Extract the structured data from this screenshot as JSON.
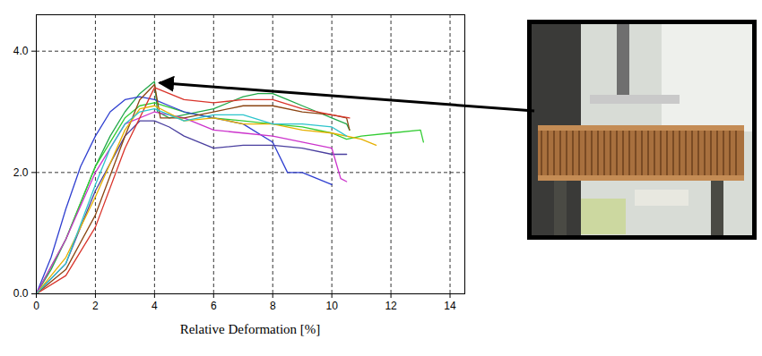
{
  "chart_data": {
    "type": "line",
    "xlabel": "Relative Deformation [%]",
    "xlim": [
      0,
      14.5
    ],
    "ylim": [
      0,
      4.6
    ],
    "xticks": [
      0,
      2,
      4,
      6,
      8,
      10,
      12,
      14
    ],
    "yticks": [
      0,
      2,
      4
    ],
    "grid": true,
    "series": [
      {
        "color": "#22a84a",
        "x": [
          0,
          0.5,
          1,
          1.5,
          2,
          2.5,
          3,
          3.5,
          4,
          4.1,
          4.5,
          5,
          6,
          7,
          7.5,
          8,
          8.5,
          9,
          9.5,
          10,
          10.5,
          10.6
        ],
        "values": [
          0,
          0.4,
          0.9,
          1.5,
          2.1,
          2.6,
          3.0,
          3.3,
          3.5,
          3.0,
          2.9,
          2.95,
          3.05,
          3.25,
          3.3,
          3.3,
          3.2,
          3.1,
          3.0,
          2.9,
          2.8,
          2.7
        ]
      },
      {
        "color": "#33cc33",
        "x": [
          0,
          1,
          2,
          3,
          3.5,
          4,
          5,
          6,
          7,
          8,
          9,
          10,
          10.5,
          11,
          12,
          13,
          13.1
        ],
        "values": [
          0,
          0.9,
          2.1,
          2.9,
          3.1,
          3.15,
          3.0,
          2.9,
          2.85,
          2.8,
          2.75,
          2.65,
          2.55,
          2.6,
          2.65,
          2.7,
          2.5
        ]
      },
      {
        "color": "#2f3fd0",
        "x": [
          0,
          0.5,
          1,
          1.5,
          2,
          2.5,
          3,
          3.5,
          4,
          4.5,
          5,
          6,
          7,
          8,
          8.5,
          9,
          9.5,
          10
        ],
        "values": [
          0,
          0.6,
          1.4,
          2.1,
          2.6,
          3.0,
          3.2,
          3.25,
          3.2,
          3.1,
          3.0,
          2.9,
          2.8,
          2.5,
          2.0,
          2.0,
          1.9,
          1.8
        ]
      },
      {
        "color": "#4a3f9f",
        "x": [
          0,
          1,
          2,
          3,
          3.5,
          4,
          4.5,
          5,
          6,
          7,
          8,
          9,
          10,
          10.5
        ],
        "values": [
          0,
          0.5,
          1.7,
          2.6,
          2.85,
          2.85,
          2.75,
          2.6,
          2.4,
          2.45,
          2.45,
          2.4,
          2.3,
          2.3
        ]
      },
      {
        "color": "#cc33cc",
        "x": [
          0,
          1,
          2,
          3,
          4,
          5,
          6,
          7,
          8,
          9,
          10,
          10.3,
          10.5
        ],
        "values": [
          0,
          0.9,
          2.0,
          2.8,
          3.0,
          2.9,
          2.7,
          2.65,
          2.6,
          2.5,
          2.4,
          1.9,
          1.85
        ]
      },
      {
        "color": "#8b4513",
        "x": [
          0,
          1,
          2,
          3,
          3.5,
          4,
          4.2,
          5,
          6,
          7,
          8,
          9,
          10,
          10.5,
          10.6
        ],
        "values": [
          0,
          0.4,
          1.3,
          2.6,
          3.2,
          3.45,
          2.9,
          2.9,
          3.0,
          3.1,
          3.1,
          3.0,
          2.95,
          2.9,
          2.7
        ]
      },
      {
        "color": "#d9342b",
        "x": [
          0,
          1,
          2,
          3,
          4,
          5,
          6,
          7,
          8,
          9,
          10,
          10.6
        ],
        "values": [
          0,
          0.3,
          1.1,
          2.4,
          3.4,
          3.2,
          3.15,
          3.2,
          3.2,
          3.05,
          2.95,
          2.9
        ]
      },
      {
        "color": "#e6b000",
        "x": [
          0,
          1,
          2,
          3,
          3.5,
          4,
          5,
          6,
          7,
          8,
          9,
          10,
          11,
          11.5
        ],
        "values": [
          0,
          0.6,
          1.6,
          2.7,
          3.05,
          3.1,
          2.85,
          2.9,
          2.8,
          2.8,
          2.7,
          2.65,
          2.55,
          2.45
        ]
      },
      {
        "color": "#2cc4cc",
        "x": [
          0,
          1,
          2,
          2.5,
          3,
          3.5,
          4,
          5,
          6,
          7,
          8,
          9,
          10,
          10.5
        ],
        "values": [
          0,
          0.5,
          1.8,
          2.4,
          2.8,
          3.0,
          3.05,
          2.85,
          2.95,
          2.95,
          2.8,
          2.8,
          2.75,
          2.6
        ]
      }
    ]
  }
}
